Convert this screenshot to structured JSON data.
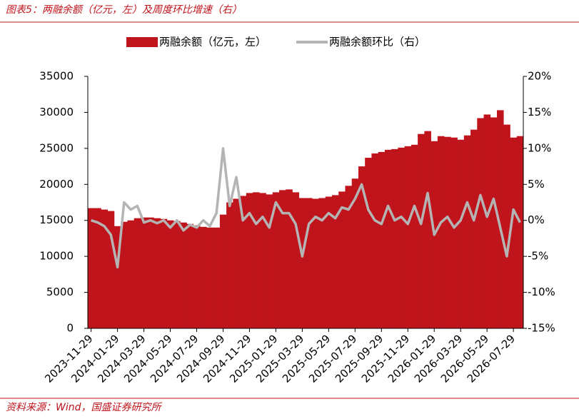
{
  "chart_data": {
    "type": "bar-line",
    "title": "图表5：两融余额（亿元，左）及周度环比增速（右）",
    "source": "资料来源：Wind，国盛证券研究所",
    "categories": [
      "2023-11-29",
      null,
      null,
      null,
      "2024-01-29",
      null,
      null,
      null,
      "2024-03-29",
      null,
      null,
      null,
      "2024-05-29",
      null,
      null,
      null,
      "2024-07-29",
      null,
      null,
      null,
      "2024-09-29",
      null,
      null,
      null,
      "2024-11-29",
      null,
      null,
      null,
      "2025-01-29",
      null,
      null,
      null,
      "2025-03-29",
      null,
      null,
      null,
      "2025-05-29",
      null,
      null,
      null,
      "2025-07-29",
      null,
      null,
      null,
      "2025-09-29",
      null,
      null,
      null,
      "2025-11-29",
      null,
      null,
      null,
      "2026-01-29",
      null,
      null,
      null,
      "2026-03-29",
      null,
      null,
      null,
      "2026-05-29",
      null,
      null,
      null,
      "2026-07-29",
      null
    ],
    "series": [
      {
        "name": "两融余额（亿元，左）",
        "type": "bar",
        "color": "#c0141c",
        "values": [
          16700,
          16700,
          16500,
          16300,
          14200,
          14800,
          15000,
          15300,
          15400,
          15400,
          15300,
          15200,
          15000,
          14900,
          14700,
          14500,
          14300,
          14100,
          14000,
          14000,
          15800,
          17500,
          18000,
          18400,
          18800,
          18900,
          18800,
          18600,
          18900,
          19200,
          19300,
          18900,
          18100,
          18100,
          18000,
          18100,
          18300,
          18500,
          19000,
          19800,
          20800,
          22500,
          23700,
          24300,
          24500,
          24800,
          24900,
          25100,
          25300,
          25500,
          27000,
          27400,
          26000,
          26700,
          26600,
          26500,
          26200,
          26800,
          27600,
          29200,
          29700,
          29300,
          30300,
          28300,
          26500,
          26700
        ]
      },
      {
        "name": "两融余额环比（右）",
        "type": "line",
        "axis": "y2",
        "color": "#b4b4b4",
        "values": [
          0,
          -0.3,
          -0.8,
          -2,
          -6.5,
          2.5,
          1.5,
          2,
          -0.3,
          0,
          -0.4,
          0,
          -1,
          0,
          -1.4,
          -0.6,
          -1,
          0,
          -0.8,
          1,
          10,
          2,
          6,
          0,
          1,
          -0.5,
          0.5,
          -1,
          2.5,
          1,
          1,
          -0.5,
          -5,
          -0.5,
          0.5,
          0,
          1,
          0.3,
          1.8,
          1.5,
          3,
          5,
          1.5,
          0,
          -0.5,
          2,
          0,
          0.5,
          -0.5,
          2,
          -0.5,
          3.8,
          -2,
          -0.3,
          0.5,
          -1,
          0,
          2.5,
          0,
          3.5,
          0.5,
          3,
          -1,
          -5,
          1.5,
          -0.3
        ]
      }
    ],
    "ylim": [
      0,
      35000
    ],
    "yticks": [
      0,
      5000,
      10000,
      15000,
      20000,
      25000,
      30000,
      35000
    ],
    "y2lim": [
      -15,
      20
    ],
    "y2ticks": [
      {
        "value": -15,
        "label": "-15%"
      },
      {
        "value": -10,
        "label": "-10%"
      },
      {
        "value": -5,
        "label": "-5%"
      },
      {
        "value": 0,
        "label": "0%"
      },
      {
        "value": 5,
        "label": "5%"
      },
      {
        "value": 10,
        "label": "10%"
      },
      {
        "value": 15,
        "label": "15%"
      },
      {
        "value": 20,
        "label": "20%"
      }
    ],
    "legend": "top"
  }
}
